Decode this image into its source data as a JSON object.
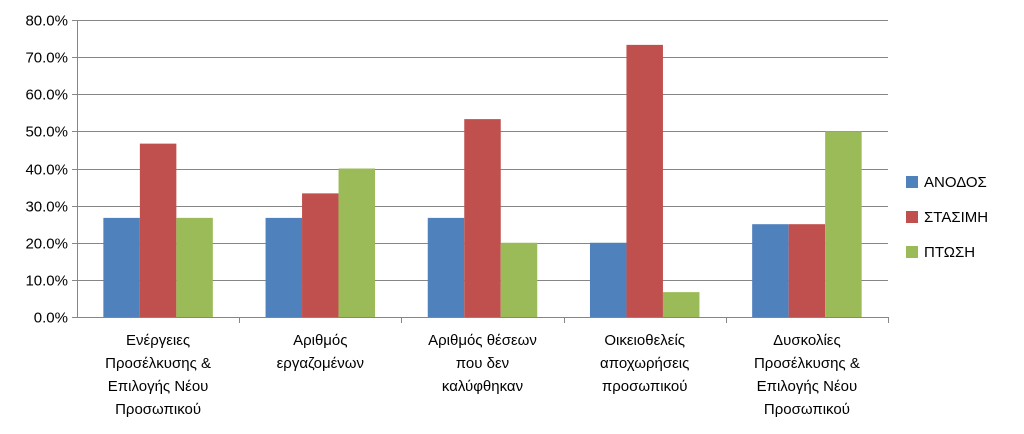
{
  "chart_data": {
    "type": "bar",
    "title": "",
    "xlabel": "",
    "ylabel": "",
    "ylim": [
      0,
      0.8
    ],
    "y_ticks": [
      "0.0%",
      "10.0%",
      "20.0%",
      "30.0%",
      "40.0%",
      "50.0%",
      "60.0%",
      "70.0%",
      "80.0%"
    ],
    "y_tick_values": [
      0,
      0.1,
      0.2,
      0.3,
      0.4,
      0.5,
      0.6,
      0.7,
      0.8
    ],
    "grid": true,
    "legend_position": "right",
    "categories": [
      [
        "Ενέργειες",
        "Προσέλκυσης &",
        "Επιλογής Νέου",
        "Προσωπικού"
      ],
      [
        "Αριθμός",
        "εργαζομένων"
      ],
      [
        "Αριθμός θέσεων",
        "που δεν",
        "καλύφθηκαν"
      ],
      [
        "Οικειοθελείς",
        "αποχωρήσεις",
        "προσωπικού"
      ],
      [
        "Δυσκολίες",
        "Προσέλκυσης &",
        "Επιλογής Νέου",
        "Προσωπικού"
      ]
    ],
    "series": [
      {
        "name": "ΑΝΟΔΟΣ",
        "color": "#4f81bd",
        "values": [
          0.267,
          0.267,
          0.267,
          0.2,
          0.25
        ]
      },
      {
        "name": "ΣΤΑΣΙΜΗ",
        "color": "#c0504d",
        "values": [
          0.467,
          0.333,
          0.533,
          0.733,
          0.25
        ]
      },
      {
        "name": "ΠΤΩΣΗ",
        "color": "#9bbb59",
        "values": [
          0.267,
          0.4,
          0.2,
          0.067,
          0.5
        ]
      }
    ]
  }
}
